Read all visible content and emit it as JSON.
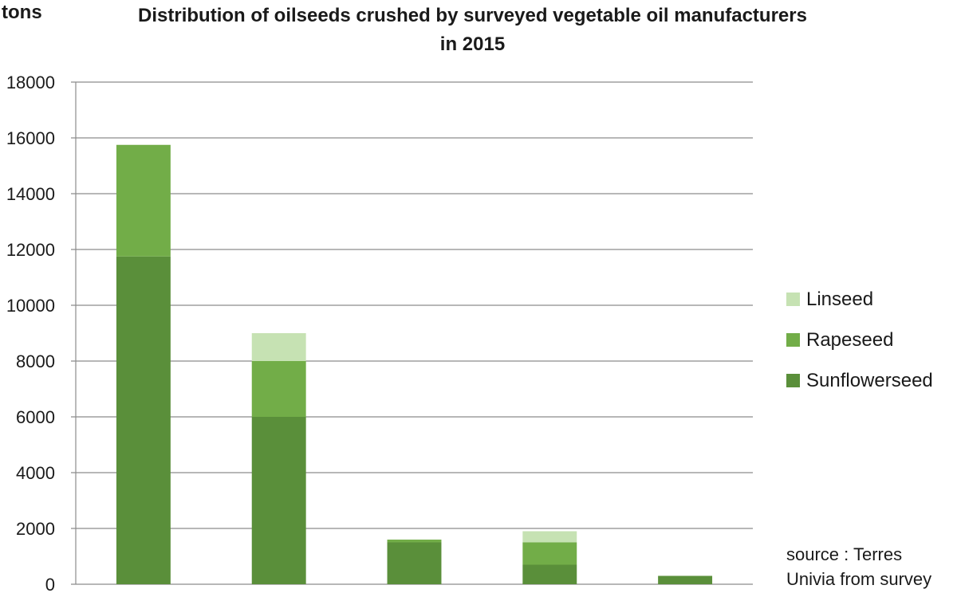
{
  "chart_data": {
    "type": "bar",
    "stacked": true,
    "title_line1": "Distribution of oilseeds crushed by surveyed vegetable oil manufacturers",
    "title_line2": "in 2015",
    "ylabel": "tons",
    "ylim": [
      0,
      18000
    ],
    "yticks": [
      "0",
      "2000",
      "4000",
      "6000",
      "8000",
      "10000",
      "12000",
      "14000",
      "16000",
      "18000"
    ],
    "grid": true,
    "legend_position": "right",
    "categories": [
      "",
      "",
      "",
      "",
      ""
    ],
    "series": [
      {
        "name": "Sunflowerseed",
        "color": "#5a8f3a",
        "values": [
          11750,
          6000,
          1500,
          700,
          300
        ]
      },
      {
        "name": "Rapeseed",
        "color": "#72ad48",
        "values": [
          4000,
          2000,
          100,
          800,
          0
        ]
      },
      {
        "name": "Linseed",
        "color": "#c6e2b3",
        "values": [
          0,
          1000,
          0,
          400,
          0
        ]
      }
    ],
    "legend": [
      "Linseed",
      "Rapeseed",
      "Sunflowerseed"
    ],
    "source_line1": "source : Terres",
    "source_line2": "Univia from survey"
  }
}
